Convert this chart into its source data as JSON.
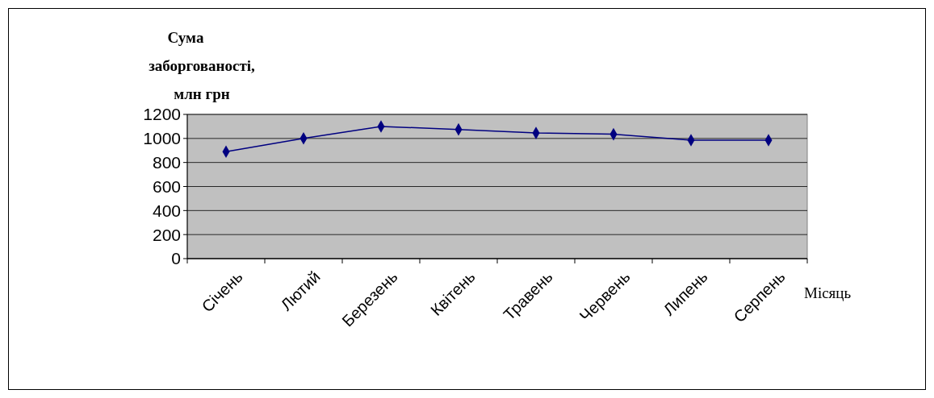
{
  "chart_data": {
    "type": "line",
    "ylabel": "Сума заборгованості, млн грн",
    "xlabel": "Місяць",
    "categories": [
      "Січень",
      "Лютий",
      "Березень",
      "Квітень",
      "Травень",
      "Червень",
      "Липень",
      "Серпень"
    ],
    "series": [
      {
        "color": "#000080",
        "values": [
          890,
          1000,
          1100,
          1075,
          1045,
          1035,
          985,
          985
        ]
      }
    ],
    "ylim": [
      0,
      1200
    ],
    "yticks": [
      0,
      200,
      400,
      600,
      800,
      1000,
      1200
    ],
    "grid": "y",
    "marker": "diamond",
    "line_style": "solid"
  }
}
